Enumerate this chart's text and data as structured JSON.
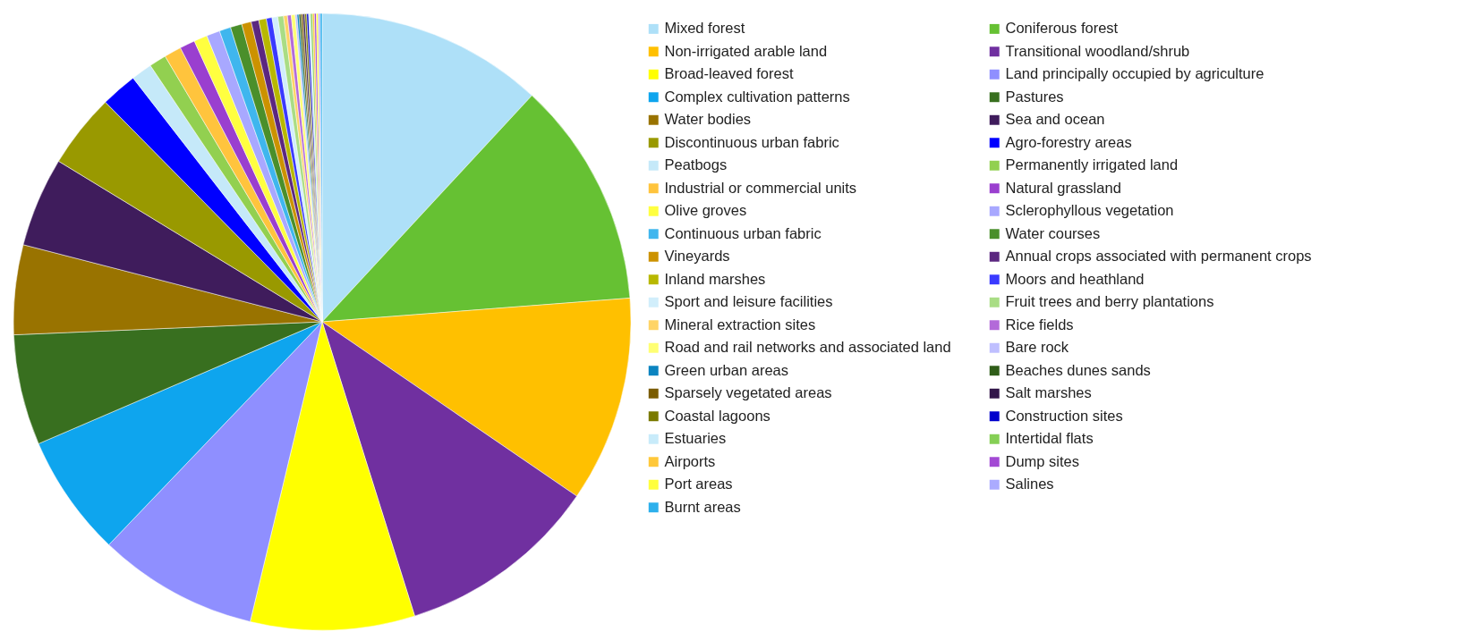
{
  "chart_data": {
    "type": "pie",
    "categories": [
      "Mixed forest",
      "Coniferous forest",
      "Non-irrigated arable land",
      "Transitional woodland/shrub",
      "Broad-leaved forest",
      "Land principally occupied by agriculture",
      "Complex cultivation patterns",
      "Pastures",
      "Water bodies",
      "Sea and ocean",
      "Discontinuous urban fabric",
      "Agro-forestry areas",
      "Peatbogs",
      "Permanently irrigated land",
      "Industrial or commercial units",
      "Natural grassland",
      "Olive groves",
      "Sclerophyllous vegetation",
      "Continuous urban fabric",
      "Water courses",
      "Vineyards",
      "Annual crops associated with permanent crops",
      "Inland marshes",
      "Moors and heathland",
      "Sport and leisure facilities",
      "Fruit trees and berry plantations",
      "Mineral extraction sites",
      "Rice fields",
      "Road and rail networks and associated land",
      "Bare rock",
      "Green urban areas",
      "Beaches dunes sands",
      "Sparsely vegetated areas",
      "Salt marshes",
      "Coastal lagoons",
      "Construction sites",
      "Estuaries",
      "Intertidal flats",
      "Airports",
      "Dump sites",
      "Port areas",
      "Salines",
      "Burnt areas"
    ],
    "values": [
      11.9,
      11.9,
      10.8,
      10.6,
      8.6,
      8.4,
      6.4,
      5.8,
      4.7,
      4.7,
      3.9,
      1.9,
      1.1,
      0.9,
      0.9,
      0.8,
      0.7,
      0.7,
      0.6,
      0.6,
      0.5,
      0.4,
      0.4,
      0.3,
      0.3,
      0.3,
      0.2,
      0.2,
      0.2,
      0.1,
      0.1,
      0.1,
      0.1,
      0.1,
      0.1,
      0.1,
      0.1,
      0.1,
      0.1,
      0.1,
      0.1,
      0.1,
      0.1
    ],
    "colors": [
      "#aee0f8",
      "#66c133",
      "#ffc000",
      "#7030a0",
      "#ffff00",
      "#8f8fff",
      "#0ea5ee",
      "#386f1f",
      "#997300",
      "#3f1c5c",
      "#999900",
      "#0000ff",
      "#c5e9f9",
      "#92d050",
      "#ffc43d",
      "#9a3fcf",
      "#ffff40",
      "#a8a8ff",
      "#3fb6ee",
      "#4a8f2b",
      "#cc9200",
      "#5b2780",
      "#b8b800",
      "#3a3aff",
      "#d1eefb",
      "#a9dd85",
      "#ffd466",
      "#b36ad9",
      "#ffff73",
      "#bfbfff",
      "#0b84c0",
      "#2f5d19",
      "#7a5c00",
      "#32164a",
      "#7a7a00",
      "#0000cc",
      "#c8ebfa",
      "#85cf55",
      "#ffc83a",
      "#a349d4",
      "#ffff3d",
      "#ababff",
      "#2db0ec"
    ],
    "legend": "right"
  }
}
